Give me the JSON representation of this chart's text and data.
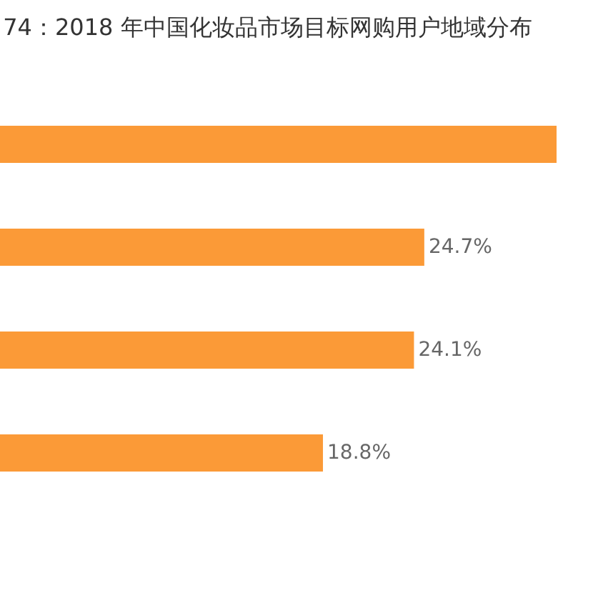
{
  "chart_data": {
    "type": "bar",
    "orientation": "horizontal",
    "title": "74：2018 年中国化妆品市场目标网购用户地域分布",
    "categories": [
      null,
      null,
      null,
      null
    ],
    "values": [
      32.4,
      24.7,
      24.1,
      18.8
    ],
    "value_labels": [
      null,
      "24.7%",
      "24.1%",
      "18.8%"
    ],
    "color": "#fb9a37",
    "tick_labels": false
  }
}
